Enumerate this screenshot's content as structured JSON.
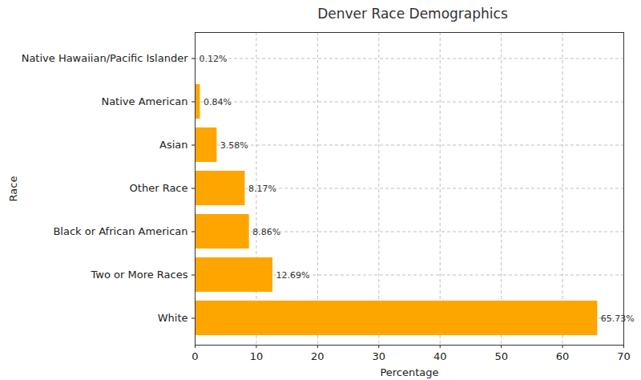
{
  "chart_data": {
    "type": "bar",
    "orientation": "horizontal",
    "title": "Denver Race Demographics",
    "x_label": "Percentage",
    "y_label": "Race",
    "categories": [
      "Native Hawaiian/Pacific Islander",
      "Native American",
      "Asian",
      "Other Race",
      "Black or African American",
      "Two or More Races",
      "White"
    ],
    "values": [
      0.12,
      0.84,
      3.58,
      8.17,
      8.86,
      12.69,
      65.73
    ],
    "value_labels": [
      "0.12%",
      "0.84%",
      "3.58%",
      "8.17%",
      "8.86%",
      "12.69%",
      "65.73%"
    ],
    "data_labels": true,
    "color": "#FFA500",
    "xlim": [
      0,
      70
    ],
    "xticks": [
      0,
      10,
      20,
      30,
      40,
      50,
      60,
      70
    ],
    "grid": true
  }
}
